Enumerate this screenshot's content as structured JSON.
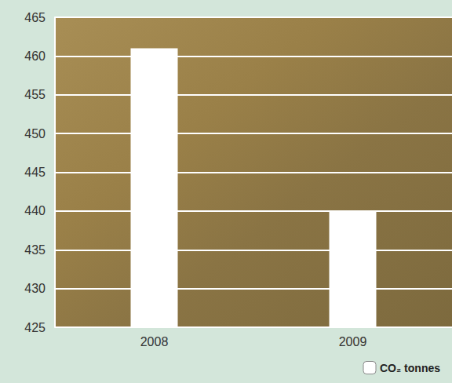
{
  "chart_data": {
    "type": "bar",
    "categories": [
      "2008",
      "2009"
    ],
    "series": [
      {
        "name": "CO₂ tonnes",
        "color": "#ffffff",
        "values": [
          461,
          440
        ]
      }
    ],
    "ylim": [
      425,
      465
    ],
    "yticks": [
      425,
      430,
      435,
      440,
      445,
      450,
      455,
      460,
      465
    ],
    "grid": true,
    "legend": "bottom right"
  }
}
